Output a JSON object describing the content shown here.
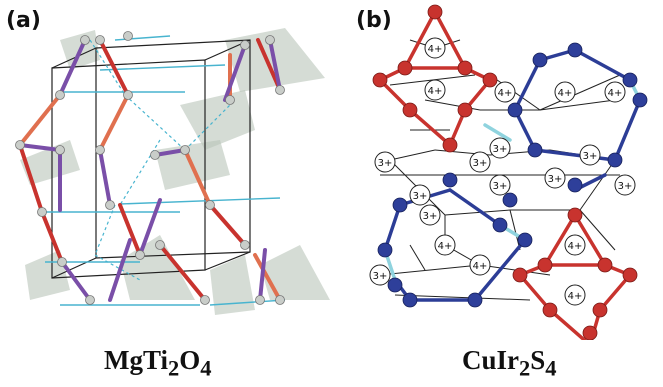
{
  "panels": [
    {
      "label": "(a)",
      "caption_html": "MgTi<sub>2</sub>O<sub>4</sub>",
      "caption_text": "MgTi2O4"
    },
    {
      "label": "(b)",
      "caption_html": "CuIr<sub>2</sub>S<sub>4</sub>",
      "caption_text": "CuIr2S4",
      "ion_labels": {
        "four_plus": "4+",
        "three_plus": "3+"
      }
    }
  ],
  "colors": {
    "red_bond": "#c8332e",
    "orange_bond": "#e0704f",
    "purple_bond": "#7a4fa8",
    "cyan_bond": "#48b4cf",
    "red_atom": "#c8332e",
    "blue_atom": "#2e3f9a",
    "blue_bond": "#2c3d96",
    "light_cyan_bond": "#8fd3de",
    "tetrahedron": "#b9c4b9"
  }
}
